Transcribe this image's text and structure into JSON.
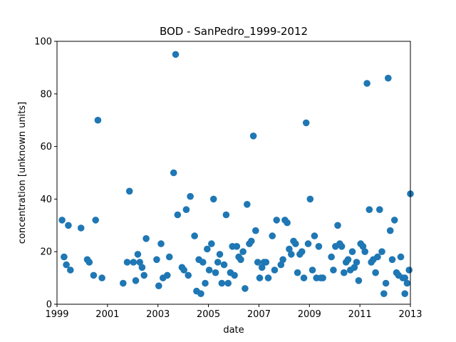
{
  "chart_data": {
    "type": "scatter",
    "title": "BOD - SanPedro_1999-2012",
    "xlabel": "date",
    "ylabel": "concentration [unknown units]",
    "xlim": [
      1999.0,
      2013.0
    ],
    "ylim": [
      0,
      100
    ],
    "x_ticks": [
      "1999",
      "2001",
      "2003",
      "2005",
      "2007",
      "2009",
      "2011",
      "2013"
    ],
    "y_ticks": [
      "0",
      "20",
      "40",
      "60",
      "80",
      "100"
    ],
    "grid": false,
    "marker_color": "#1f77b4",
    "points": [
      {
        "x": 1999.2,
        "y": 32
      },
      {
        "x": 1999.28,
        "y": 18
      },
      {
        "x": 1999.37,
        "y": 15
      },
      {
        "x": 1999.45,
        "y": 30
      },
      {
        "x": 1999.53,
        "y": 13
      },
      {
        "x": 1999.95,
        "y": 29
      },
      {
        "x": 2000.2,
        "y": 17
      },
      {
        "x": 2000.28,
        "y": 16
      },
      {
        "x": 2000.45,
        "y": 11
      },
      {
        "x": 2000.53,
        "y": 32
      },
      {
        "x": 2000.62,
        "y": 70
      },
      {
        "x": 2000.78,
        "y": 10
      },
      {
        "x": 2001.62,
        "y": 8
      },
      {
        "x": 2001.78,
        "y": 16
      },
      {
        "x": 2001.87,
        "y": 43
      },
      {
        "x": 2002.03,
        "y": 16
      },
      {
        "x": 2002.12,
        "y": 9
      },
      {
        "x": 2002.2,
        "y": 19
      },
      {
        "x": 2002.28,
        "y": 16
      },
      {
        "x": 2002.37,
        "y": 14
      },
      {
        "x": 2002.45,
        "y": 11
      },
      {
        "x": 2002.53,
        "y": 25
      },
      {
        "x": 2002.95,
        "y": 17
      },
      {
        "x": 2003.03,
        "y": 7
      },
      {
        "x": 2003.12,
        "y": 23
      },
      {
        "x": 2003.2,
        "y": 10
      },
      {
        "x": 2003.37,
        "y": 11
      },
      {
        "x": 2003.45,
        "y": 18
      },
      {
        "x": 2003.62,
        "y": 50
      },
      {
        "x": 2003.7,
        "y": 95
      },
      {
        "x": 2003.78,
        "y": 34
      },
      {
        "x": 2003.95,
        "y": 14
      },
      {
        "x": 2004.03,
        "y": 13
      },
      {
        "x": 2004.12,
        "y": 36
      },
      {
        "x": 2004.2,
        "y": 11
      },
      {
        "x": 2004.28,
        "y": 41
      },
      {
        "x": 2004.45,
        "y": 26
      },
      {
        "x": 2004.53,
        "y": 5
      },
      {
        "x": 2004.62,
        "y": 17
      },
      {
        "x": 2004.7,
        "y": 4
      },
      {
        "x": 2004.78,
        "y": 16
      },
      {
        "x": 2004.87,
        "y": 8
      },
      {
        "x": 2004.95,
        "y": 21
      },
      {
        "x": 2005.03,
        "y": 13
      },
      {
        "x": 2005.12,
        "y": 23
      },
      {
        "x": 2005.2,
        "y": 40
      },
      {
        "x": 2005.28,
        "y": 12
      },
      {
        "x": 2005.37,
        "y": 16
      },
      {
        "x": 2005.45,
        "y": 19
      },
      {
        "x": 2005.53,
        "y": 8
      },
      {
        "x": 2005.62,
        "y": 15
      },
      {
        "x": 2005.7,
        "y": 34
      },
      {
        "x": 2005.78,
        "y": 8
      },
      {
        "x": 2005.87,
        "y": 12
      },
      {
        "x": 2005.95,
        "y": 22
      },
      {
        "x": 2006.03,
        "y": 11
      },
      {
        "x": 2006.12,
        "y": 22
      },
      {
        "x": 2006.2,
        "y": 18
      },
      {
        "x": 2006.28,
        "y": 17
      },
      {
        "x": 2006.37,
        "y": 20
      },
      {
        "x": 2006.45,
        "y": 6
      },
      {
        "x": 2006.53,
        "y": 38
      },
      {
        "x": 2006.62,
        "y": 23
      },
      {
        "x": 2006.7,
        "y": 24
      },
      {
        "x": 2006.78,
        "y": 64
      },
      {
        "x": 2006.87,
        "y": 28
      },
      {
        "x": 2006.95,
        "y": 16
      },
      {
        "x": 2007.03,
        "y": 10
      },
      {
        "x": 2007.12,
        "y": 14
      },
      {
        "x": 2007.2,
        "y": 16
      },
      {
        "x": 2007.28,
        "y": 16
      },
      {
        "x": 2007.37,
        "y": 10
      },
      {
        "x": 2007.53,
        "y": 26
      },
      {
        "x": 2007.62,
        "y": 13
      },
      {
        "x": 2007.7,
        "y": 32
      },
      {
        "x": 2007.87,
        "y": 15
      },
      {
        "x": 2007.95,
        "y": 17
      },
      {
        "x": 2008.03,
        "y": 32
      },
      {
        "x": 2008.12,
        "y": 31
      },
      {
        "x": 2008.2,
        "y": 21
      },
      {
        "x": 2008.28,
        "y": 19
      },
      {
        "x": 2008.37,
        "y": 24
      },
      {
        "x": 2008.45,
        "y": 23
      },
      {
        "x": 2008.53,
        "y": 12
      },
      {
        "x": 2008.62,
        "y": 19
      },
      {
        "x": 2008.7,
        "y": 20
      },
      {
        "x": 2008.78,
        "y": 10
      },
      {
        "x": 2008.87,
        "y": 69
      },
      {
        "x": 2008.95,
        "y": 23
      },
      {
        "x": 2009.03,
        "y": 40
      },
      {
        "x": 2009.12,
        "y": 13
      },
      {
        "x": 2009.2,
        "y": 26
      },
      {
        "x": 2009.28,
        "y": 10
      },
      {
        "x": 2009.37,
        "y": 22
      },
      {
        "x": 2009.45,
        "y": 10
      },
      {
        "x": 2009.53,
        "y": 10
      },
      {
        "x": 2009.87,
        "y": 18
      },
      {
        "x": 2009.95,
        "y": 13
      },
      {
        "x": 2010.03,
        "y": 22
      },
      {
        "x": 2010.12,
        "y": 30
      },
      {
        "x": 2010.2,
        "y": 23
      },
      {
        "x": 2010.28,
        "y": 22
      },
      {
        "x": 2010.37,
        "y": 12
      },
      {
        "x": 2010.45,
        "y": 16
      },
      {
        "x": 2010.53,
        "y": 17
      },
      {
        "x": 2010.62,
        "y": 13
      },
      {
        "x": 2010.7,
        "y": 20
      },
      {
        "x": 2010.78,
        "y": 14
      },
      {
        "x": 2010.87,
        "y": 16
      },
      {
        "x": 2010.95,
        "y": 9
      },
      {
        "x": 2011.03,
        "y": 23
      },
      {
        "x": 2011.12,
        "y": 22
      },
      {
        "x": 2011.2,
        "y": 20
      },
      {
        "x": 2011.28,
        "y": 84
      },
      {
        "x": 2011.37,
        "y": 36
      },
      {
        "x": 2011.45,
        "y": 16
      },
      {
        "x": 2011.53,
        "y": 17
      },
      {
        "x": 2011.62,
        "y": 12
      },
      {
        "x": 2011.7,
        "y": 18
      },
      {
        "x": 2011.78,
        "y": 36
      },
      {
        "x": 2011.87,
        "y": 20
      },
      {
        "x": 2011.95,
        "y": 4
      },
      {
        "x": 2012.03,
        "y": 8
      },
      {
        "x": 2012.12,
        "y": 86
      },
      {
        "x": 2012.2,
        "y": 28
      },
      {
        "x": 2012.28,
        "y": 17
      },
      {
        "x": 2012.37,
        "y": 32
      },
      {
        "x": 2012.45,
        "y": 12
      },
      {
        "x": 2012.53,
        "y": 11
      },
      {
        "x": 2012.62,
        "y": 18
      },
      {
        "x": 2012.7,
        "y": 10
      },
      {
        "x": 2012.78,
        "y": 10
      },
      {
        "x": 2012.78,
        "y": 4
      },
      {
        "x": 2012.87,
        "y": 8
      },
      {
        "x": 2012.95,
        "y": 13
      },
      {
        "x": 2013.0,
        "y": 42
      }
    ]
  }
}
